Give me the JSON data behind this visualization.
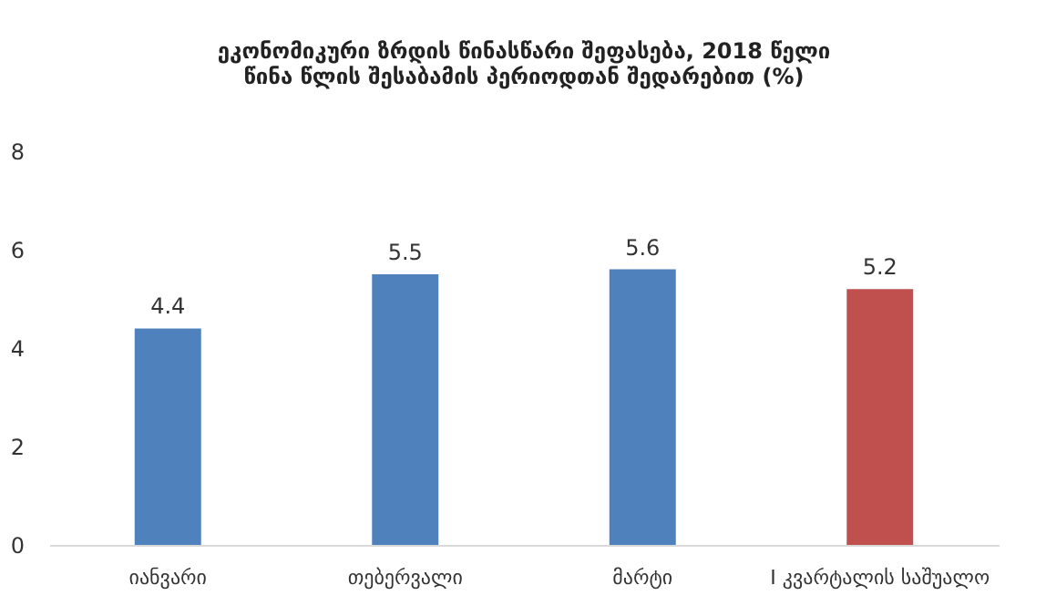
{
  "chart_data": {
    "type": "bar",
    "title": "ეკონომიკური ზრდის წინასწარი შეფასება, 2018 წელი\nწინა წლის შესაბამის პერიოდთან შედარებით (%)",
    "categories": [
      "იანვარი",
      "თებერვალი",
      "მარტი",
      "I კვარტალის საშუალო"
    ],
    "values": [
      4.4,
      5.5,
      5.6,
      5.2
    ],
    "colors": [
      "#4f81bd",
      "#4f81bd",
      "#4f81bd",
      "#c0504d"
    ],
    "ylim": [
      0,
      8
    ],
    "yticks": [
      0,
      2,
      4,
      6,
      8
    ],
    "grid": false,
    "data_labels": true
  }
}
